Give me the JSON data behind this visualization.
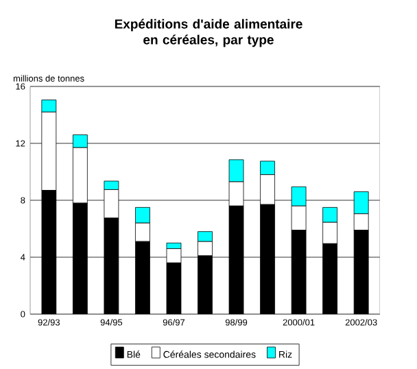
{
  "chart_data": {
    "type": "bar",
    "stacked": true,
    "title": "Expéditions d'aide alimentaire en céréales, par type",
    "ylabel": "millions de tonnes",
    "categories": [
      "92/93",
      null,
      "94/95",
      null,
      "96/97",
      null,
      "98/99",
      null,
      "2000/01",
      null,
      "2002/03"
    ],
    "series": [
      {
        "name": "Blé",
        "color": "#000000",
        "values": [
          8.7,
          7.8,
          6.75,
          5.1,
          3.6,
          4.1,
          7.6,
          7.7,
          5.9,
          4.95,
          5.9
        ]
      },
      {
        "name": "Céréales secondaires",
        "color": "#ffffff",
        "values": [
          5.5,
          3.9,
          2.0,
          1.3,
          1.0,
          1.0,
          1.7,
          2.1,
          1.7,
          1.5,
          1.15
        ]
      },
      {
        "name": "Riz",
        "color": "#00ffff",
        "values": [
          0.85,
          0.9,
          0.6,
          1.1,
          0.4,
          0.7,
          1.55,
          0.95,
          1.35,
          1.05,
          1.55
        ]
      }
    ],
    "ylim": [
      0,
      16
    ],
    "yticks": [
      0,
      4,
      8,
      12,
      16
    ],
    "grid": "y",
    "legend": "bottom"
  }
}
